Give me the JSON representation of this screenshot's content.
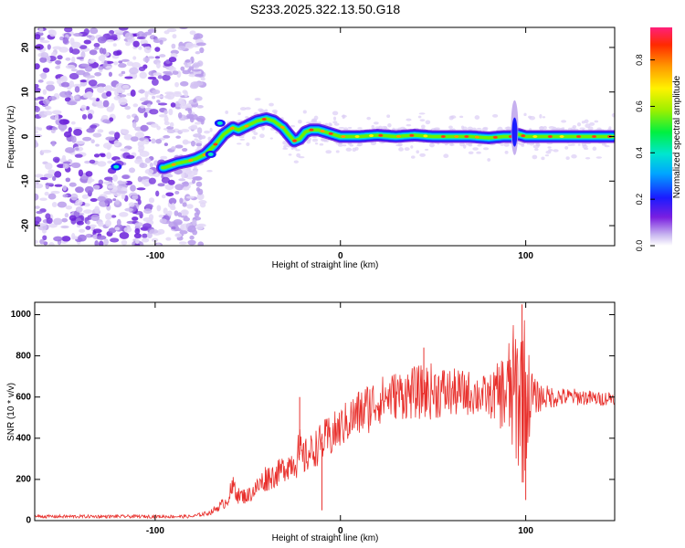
{
  "title": "S233.2025.322.13.50.G18",
  "colors": {
    "snr_line": "#e8302c",
    "axis": "#000000",
    "background": "#ffffff"
  },
  "chart_data": [
    {
      "type": "heatmap",
      "title": "S233.2025.322.13.50.G18",
      "xlabel": "Height of straight line (km)",
      "ylabel": "Frequency (Hz)",
      "xlim": [
        -165,
        148
      ],
      "ylim": [
        -24.5,
        24.5
      ],
      "xticks": [
        -100,
        0,
        100
      ],
      "yticks": [
        -20,
        -10,
        0,
        10,
        20
      ],
      "colorbar": {
        "label": "Normalized spectral amplitude",
        "range": [
          0,
          0.94
        ],
        "ticks": [
          "0.0",
          "0.2",
          "0.4",
          "0.6",
          "0.8"
        ],
        "colormap": "rainbow"
      },
      "ridge": {
        "description": "frequency of peak spectral amplitude vs height",
        "x": [
          -95,
          -88,
          -82,
          -78,
          -73,
          -68,
          -63,
          -58,
          -55,
          -50,
          -45,
          -40,
          -36,
          -31,
          -28,
          -25,
          -22,
          -19,
          -16,
          -12,
          -8,
          -4,
          0,
          10,
          20,
          30,
          40,
          50,
          60,
          70,
          80,
          88,
          92,
          96,
          100,
          110,
          120,
          130,
          140,
          148
        ],
        "y": [
          -7,
          -6,
          -5.5,
          -5,
          -4,
          -2,
          0.5,
          2,
          1.5,
          2.5,
          3.5,
          4,
          3.5,
          2,
          0.5,
          -1,
          -0.5,
          1,
          1.5,
          1.5,
          1,
          0.5,
          0,
          0,
          0.3,
          0,
          0.3,
          0,
          0,
          0,
          -0.3,
          0,
          0,
          0.5,
          0,
          0,
          0,
          0,
          0,
          0
        ]
      },
      "noise_region_x": [
        -165,
        -80
      ]
    },
    {
      "type": "line",
      "xlabel": "Height of straight line (km)",
      "ylabel": "SNR (10 * v/v)",
      "xlim": [
        -165,
        148
      ],
      "ylim": [
        0,
        1060
      ],
      "xticks": [
        -100,
        0,
        100
      ],
      "yticks": [
        0,
        200,
        400,
        600,
        800,
        1000
      ],
      "series": [
        {
          "name": "SNR",
          "color": "#e8302c",
          "envelope": {
            "x": [
              -165,
              -80,
              -70,
              -62,
              -57,
              -55,
              -50,
              -45,
              -40,
              -35,
              -30,
              -25,
              -22,
              -20,
              -15,
              -10,
              -5,
              0,
              5,
              10,
              15,
              20,
              25,
              30,
              40,
              50,
              60,
              70,
              80,
              85,
              90,
              95,
              98,
              100,
              102,
              105,
              110,
              120,
              130,
              140,
              148
            ],
            "mean": [
              20,
              20,
              40,
              90,
              170,
              120,
              120,
              160,
              210,
              220,
              260,
              290,
              320,
              300,
              340,
              380,
              410,
              450,
              490,
              520,
              550,
              580,
              600,
              610,
              620,
              630,
              620,
              620,
              600,
              620,
              620,
              620,
              600,
              600,
              600,
              600,
              600,
              600,
              600,
              590,
              600
            ],
            "spread": [
              8,
              8,
              12,
              30,
              70,
              40,
              40,
              50,
              70,
              60,
              70,
              80,
              130,
              90,
              90,
              100,
              110,
              100,
              110,
              120,
              130,
              120,
              110,
              120,
              130,
              140,
              120,
              110,
              100,
              150,
              250,
              380,
              440,
              400,
              200,
              90,
              60,
              45,
              40,
              35,
              35
            ]
          },
          "peaks": {
            "x": [
              98,
              100,
              45,
              -22,
              -10
            ],
            "y": [
              1050,
              100,
              840,
              600,
              50
            ]
          }
        }
      ]
    }
  ]
}
